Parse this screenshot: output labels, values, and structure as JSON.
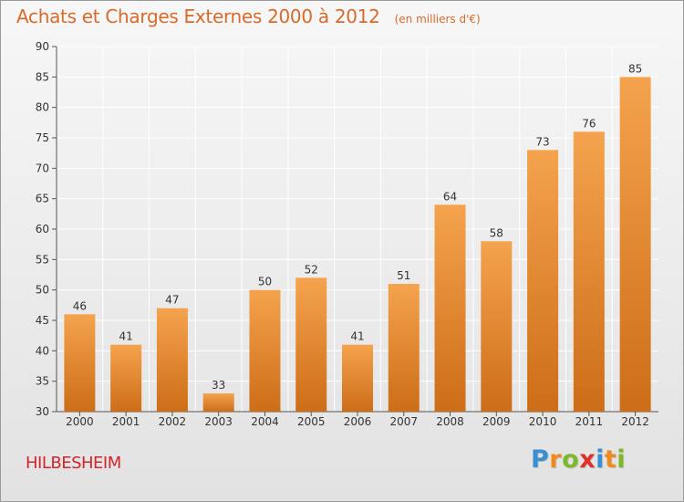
{
  "header": {
    "title": "Achats et Charges Externes 2000 à 2012",
    "unit": "(en milliers d'€)"
  },
  "footer": {
    "commune": "HILBESHEIM",
    "logo_letters": [
      "P",
      "r",
      "o",
      "x",
      "i",
      "t",
      "i"
    ],
    "logo_colors": [
      "#3a8fd0",
      "#f08a1c",
      "#7cb828",
      "#e0302a",
      "#3a8fd0",
      "#f08a1c",
      "#7cb828"
    ]
  },
  "colors": {
    "bar_top": "#f5a34e",
    "bar_bottom": "#cd6d17",
    "title": "#d86a2a",
    "commune": "#d0262c"
  },
  "chart_data": {
    "type": "bar",
    "title": "Achats et Charges Externes 2000 à 2012",
    "subtitle": "(en milliers d'€)",
    "xlabel": "",
    "ylabel": "",
    "categories": [
      "2000",
      "2001",
      "2002",
      "2003",
      "2004",
      "2005",
      "2006",
      "2007",
      "2008",
      "2009",
      "2010",
      "2011",
      "2012"
    ],
    "values": [
      46,
      41,
      47,
      33,
      50,
      52,
      41,
      51,
      64,
      58,
      73,
      76,
      85
    ],
    "ylim": [
      30,
      90
    ],
    "yticks": [
      30,
      35,
      40,
      45,
      50,
      55,
      60,
      65,
      70,
      75,
      80,
      85,
      90
    ],
    "grid": true,
    "legend": "none"
  }
}
